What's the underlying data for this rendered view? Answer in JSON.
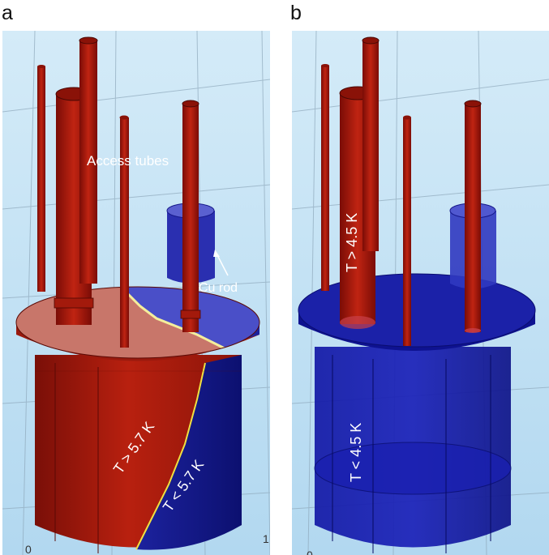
{
  "panel_a": {
    "letter": "a",
    "labels": {
      "access_tubes": "Access tubes",
      "cu_rod": "Cu rod",
      "t_high": "T > 5.7 K",
      "t_low": "T < 5.7 K"
    },
    "axis_ticks": [
      "0",
      "1"
    ]
  },
  "panel_b": {
    "letter": "b",
    "labels": {
      "t_high": "T > 4.5 K",
      "t_low": "T < 4.5 K"
    },
    "axis_ticks": [
      "0"
    ]
  },
  "colors": {
    "background": "#c5e2f5",
    "hot": "#a8150c",
    "hot_light": "#c8756a",
    "cold": "#1a1f9a",
    "cold_light": "#4a4fc8"
  }
}
